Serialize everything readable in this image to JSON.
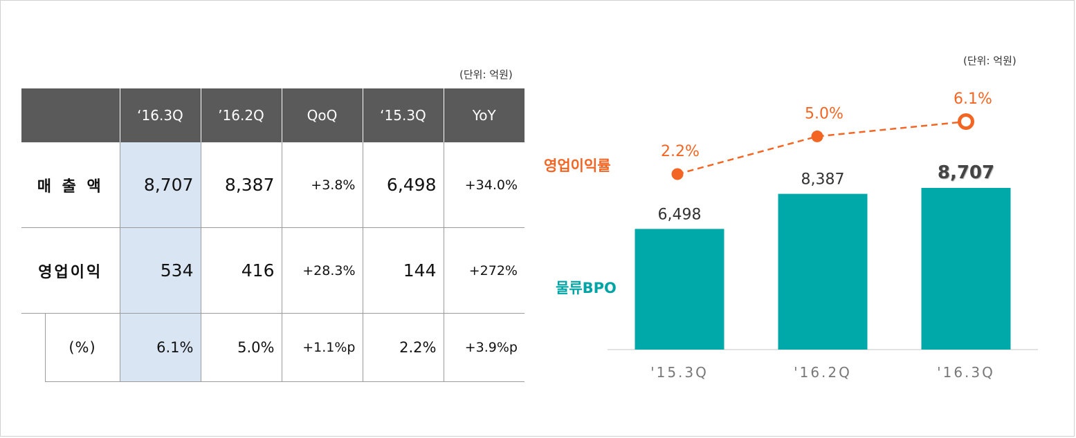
{
  "unit_left": "(단위: 억원)",
  "unit_right": "(단위: 억원)",
  "table": {
    "headers": [
      "",
      "‘16.3Q",
      "’16.2Q",
      "QoQ",
      "‘15.3Q",
      "YoY"
    ],
    "rows": [
      {
        "label": "매 출 액",
        "cells": [
          "8,707",
          "8,387",
          "+3.8%",
          "6,498",
          "+34.0%"
        ]
      },
      {
        "label": "영업이익",
        "cells": [
          "534",
          "416",
          "+28.3%",
          "144",
          "+272%"
        ]
      },
      {
        "label": "(%)",
        "cells": [
          "6.1%",
          "5.0%",
          "+1.1%p",
          "2.2%",
          "+3.9%p"
        ]
      }
    ]
  },
  "chart_labels": {
    "margin_label": "영업이익률",
    "bar_label": "물류BPO"
  },
  "chart_data": {
    "type": "bar",
    "categories": [
      "'15.3Q",
      "'16.2Q",
      "'16.3Q"
    ],
    "series": [
      {
        "name": "물류BPO",
        "type": "bar",
        "values": [
          6498,
          8387,
          8707
        ],
        "labels": [
          "6,498",
          "8,387",
          "8,707"
        ],
        "color": "#00a9a9"
      },
      {
        "name": "영업이익률",
        "type": "line",
        "values": [
          2.2,
          5.0,
          6.1
        ],
        "labels": [
          "2.2%",
          "5.0%",
          "6.1%"
        ],
        "color": "#f26522"
      }
    ],
    "title": "",
    "xlabel": "",
    "ylabel": "",
    "highlight_last": true
  },
  "colors": {
    "header_bg": "#5a5a5a",
    "highlight": "#dae5f3",
    "bar": "#00a9a9",
    "line": "#f26522"
  }
}
